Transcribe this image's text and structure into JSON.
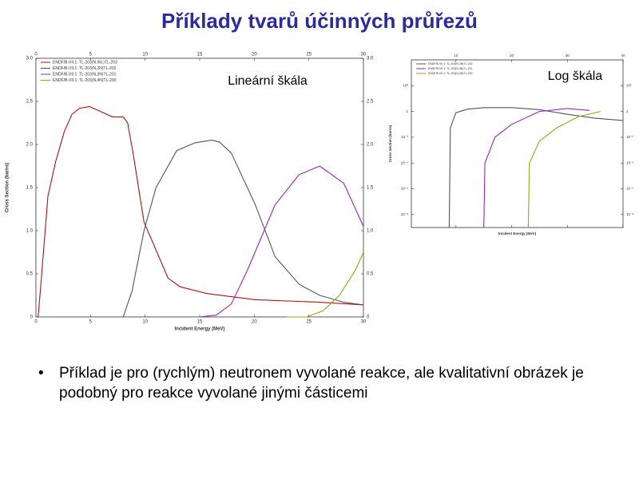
{
  "title": "Příklady tvarů účinných průřezů",
  "bullet": "Příklad je pro (rychlým) neutronem vyvolané reakce, ale kvalitativní obrázek je podobný pro reakce vyvolané jinými částicemi",
  "chart_data": [
    {
      "type": "line",
      "annotation": "Lineární škála",
      "x_label": "Incident Energy (MeV)",
      "y_label": "Cross Section (barns)",
      "xlim": [
        0,
        30
      ],
      "ylim": [
        0,
        3
      ],
      "xticks": [
        0,
        5,
        10,
        15,
        20,
        25,
        30
      ],
      "yticks": [
        0,
        0.5,
        {
          "value": 1,
          "label": "1.0"
        },
        1.5,
        {
          "value": 2,
          "label": "2.0"
        },
        2.5,
        {
          "value": 3,
          "label": "3.0"
        }
      ],
      "legend": "upper left",
      "series": [
        {
          "name": "ENDF/B-VII.1: TL-203(N,INL)TL-203",
          "color": "#b01010",
          "x": [
            0.2,
            0.4,
            1.1,
            1.8,
            2.6,
            3.3,
            4.0,
            4.9,
            7.0,
            8.0,
            8.4,
            8.9,
            9.9,
            12.1,
            13.2,
            15.7,
            20.1,
            26.0,
            30.0
          ],
          "values": [
            0,
            0.3,
            1.4,
            1.8,
            2.15,
            2.35,
            2.42,
            2.44,
            2.32,
            2.32,
            2.25,
            1.9,
            1.1,
            0.45,
            0.35,
            0.27,
            0.2,
            0.17,
            0.14
          ]
        },
        {
          "name": "ENDF/B-VII.1: TL-203(N,2N)TL-202",
          "color": "#555555",
          "x": [
            8.0,
            8.8,
            9.9,
            11.0,
            12.9,
            14.6,
            16.1,
            16.8,
            17.9,
            20.1,
            21.9,
            24.1,
            26.0,
            28.2,
            30.0
          ],
          "values": [
            0,
            0.3,
            1.0,
            1.5,
            1.93,
            2.02,
            2.05,
            2.03,
            1.9,
            1.3,
            0.7,
            0.38,
            0.25,
            0.17,
            0.14
          ]
        },
        {
          "name": "ENDF/B-VII.1: TL-203(N,3N)TL-201",
          "color": "#a020c0",
          "x": [
            15.0,
            16.5,
            17.9,
            19.4,
            21.9,
            24.1,
            26.0,
            28.2,
            30.0
          ],
          "values": [
            0,
            0.02,
            0.15,
            0.55,
            1.3,
            1.65,
            1.75,
            1.55,
            1.05
          ]
        },
        {
          "name": "ENDF/B-VII.1: TL-203(N,4N)TL-200",
          "color": "#a0a010",
          "x": [
            23.0,
            24.8,
            26.3,
            27.8,
            29.3,
            30.0
          ],
          "values": [
            0,
            0,
            0.07,
            0.25,
            0.55,
            0.75
          ]
        }
      ]
    },
    {
      "type": "line",
      "annotation": "Log škála",
      "x_label": "Incident Energy (MeV)",
      "y_label": "Cross Section (barns)",
      "yscale": "log",
      "xlim": [
        2,
        40
      ],
      "ylim": [
        1e-09,
        10000
      ],
      "xticks": [
        10,
        20,
        30,
        40
      ],
      "yticks": [
        {
          "value": 100,
          "label": "10²"
        },
        1,
        {
          "value": 0.01,
          "label": "10⁻²"
        },
        {
          "value": 0.0001,
          "label": "10⁻⁴"
        },
        {
          "value": 1e-06,
          "label": "10⁻⁶"
        },
        {
          "value": 1e-08,
          "label": "10⁻⁸"
        }
      ],
      "legend": "upper left",
      "series": [
        {
          "name": "ENDF/B-VII.1: TL-203(N,2N)TL-202",
          "color": "#555555",
          "x": [
            8.8,
            9.0,
            10,
            12,
            15,
            20,
            25,
            30,
            35,
            40
          ],
          "values": [
            1e-09,
            0.05,
            0.8,
            1.5,
            2.0,
            2.0,
            1.4,
            0.6,
            0.3,
            0.2
          ]
        },
        {
          "name": "ENDF/B-VII.1: TL-203(N,3N)TL-201",
          "color": "#a020c0",
          "x": [
            15,
            15.2,
            17,
            20,
            25,
            30,
            34
          ],
          "values": [
            1e-09,
            0.0001,
            0.01,
            0.1,
            1,
            1.7,
            1.2
          ]
        },
        {
          "name": "ENDF/B-VII.1: TL-203(N,4N)TL-200",
          "color": "#a0a010",
          "x": [
            23,
            23.2,
            25,
            28,
            32,
            36
          ],
          "values": [
            1e-09,
            0.0001,
            0.005,
            0.05,
            0.4,
            1
          ]
        }
      ]
    }
  ]
}
